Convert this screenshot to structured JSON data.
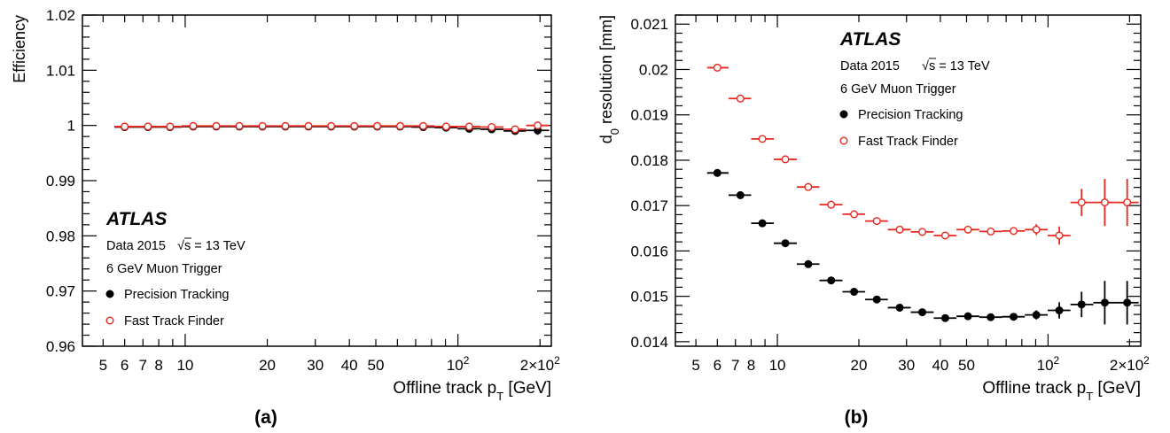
{
  "chart_data": [
    {
      "type": "scatter",
      "panel_label": "(a)",
      "atlas_label": "ATLAS",
      "data_label": "Data 2015",
      "energy_label": "√s = 13 TeV",
      "trigger_label": "6 GeV Muon Trigger",
      "xlabel": "Offline track p_T [GeV]",
      "xlabel_main": "Offline track p",
      "xlabel_sub": "T",
      "xlabel_unit": "[GeV]",
      "ylabel": "Efficiency",
      "x_scale": "log",
      "xlim": [
        4.2,
        220
      ],
      "ylim": [
        0.96,
        1.02
      ],
      "x_tick_labels": [
        {
          "value": 5,
          "label": "5"
        },
        {
          "value": 6,
          "label": "6"
        },
        {
          "value": 7,
          "label": "7"
        },
        {
          "value": 8,
          "label": "8"
        },
        {
          "value": 10,
          "label": "10"
        },
        {
          "value": 20,
          "label": "20"
        },
        {
          "value": 30,
          "label": "30"
        },
        {
          "value": 40,
          "label": "40"
        },
        {
          "value": 50,
          "label": "50"
        },
        {
          "value": 100,
          "label": "10",
          "sup": "2"
        },
        {
          "value": 200,
          "label": "2×10",
          "sup": "2"
        }
      ],
      "y_tick_labels": [
        {
          "value": 0.96,
          "label": "0.96"
        },
        {
          "value": 0.97,
          "label": "0.97"
        },
        {
          "value": 0.98,
          "label": "0.98"
        },
        {
          "value": 0.99,
          "label": "0.99"
        },
        {
          "value": 1.0,
          "label": "1"
        },
        {
          "value": 1.01,
          "label": "1.01"
        },
        {
          "value": 1.02,
          "label": "1.02"
        }
      ],
      "y_minor_step": 0.002,
      "series": [
        {
          "name": "Precision Tracking",
          "marker": "filled-circle",
          "color": "#000000",
          "points": [
            {
              "x": 6,
              "xlo": 5.5,
              "xhi": 6.6,
              "y": 0.9997,
              "err": 0.0002
            },
            {
              "x": 7.3,
              "xlo": 6.6,
              "xhi": 8,
              "y": 0.9997,
              "err": 0.0002
            },
            {
              "x": 8.8,
              "xlo": 8,
              "xhi": 9.7,
              "y": 0.9997,
              "err": 0.0002
            },
            {
              "x": 10.7,
              "xlo": 9.7,
              "xhi": 11.8,
              "y": 0.9998,
              "err": 0.0002
            },
            {
              "x": 13,
              "xlo": 11.8,
              "xhi": 14.3,
              "y": 0.9998,
              "err": 0.0002
            },
            {
              "x": 15.8,
              "xlo": 14.3,
              "xhi": 17.4,
              "y": 0.9998,
              "err": 0.0002
            },
            {
              "x": 19.2,
              "xlo": 17.4,
              "xhi": 21.1,
              "y": 0.9998,
              "err": 0.0002
            },
            {
              "x": 23.3,
              "xlo": 21.1,
              "xhi": 25.6,
              "y": 0.9998,
              "err": 0.0002
            },
            {
              "x": 28.3,
              "xlo": 25.6,
              "xhi": 31.1,
              "y": 0.9998,
              "err": 0.0002
            },
            {
              "x": 34.3,
              "xlo": 31.1,
              "xhi": 37.8,
              "y": 0.9998,
              "err": 0.0002
            },
            {
              "x": 41.7,
              "xlo": 37.8,
              "xhi": 45.9,
              "y": 0.9998,
              "err": 0.0002
            },
            {
              "x": 50.6,
              "xlo": 45.9,
              "xhi": 55.7,
              "y": 0.9998,
              "err": 0.0002
            },
            {
              "x": 61.4,
              "xlo": 55.7,
              "xhi": 67.6,
              "y": 0.9998,
              "err": 0.0002
            },
            {
              "x": 74.6,
              "xlo": 67.6,
              "xhi": 82.1,
              "y": 0.9997,
              "err": 0.0002
            },
            {
              "x": 90.5,
              "xlo": 82.1,
              "xhi": 99.7,
              "y": 0.9996,
              "err": 0.0003
            },
            {
              "x": 110,
              "xlo": 99.7,
              "xhi": 121,
              "y": 0.9994,
              "err": 0.0004
            },
            {
              "x": 133,
              "xlo": 121,
              "xhi": 147,
              "y": 0.9993,
              "err": 0.0005
            },
            {
              "x": 162,
              "xlo": 147,
              "xhi": 178,
              "y": 0.999,
              "err": 0.0006
            },
            {
              "x": 196,
              "xlo": 178,
              "xhi": 216,
              "y": 0.9991,
              "err": 0.0008
            }
          ]
        },
        {
          "name": "Fast Track Finder",
          "marker": "open-circle",
          "color": "#e8281e",
          "points": [
            {
              "x": 6,
              "xlo": 5.5,
              "xhi": 6.6,
              "y": 0.9998,
              "err": 0.0002
            },
            {
              "x": 7.3,
              "xlo": 6.6,
              "xhi": 8,
              "y": 0.9998,
              "err": 0.0002
            },
            {
              "x": 8.8,
              "xlo": 8,
              "xhi": 9.7,
              "y": 0.9998,
              "err": 0.0002
            },
            {
              "x": 10.7,
              "xlo": 9.7,
              "xhi": 11.8,
              "y": 0.9999,
              "err": 0.0002
            },
            {
              "x": 13,
              "xlo": 11.8,
              "xhi": 14.3,
              "y": 0.9999,
              "err": 0.0002
            },
            {
              "x": 15.8,
              "xlo": 14.3,
              "xhi": 17.4,
              "y": 0.9999,
              "err": 0.0002
            },
            {
              "x": 19.2,
              "xlo": 17.4,
              "xhi": 21.1,
              "y": 0.9999,
              "err": 0.0002
            },
            {
              "x": 23.3,
              "xlo": 21.1,
              "xhi": 25.6,
              "y": 0.9999,
              "err": 0.0002
            },
            {
              "x": 28.3,
              "xlo": 25.6,
              "xhi": 31.1,
              "y": 0.9999,
              "err": 0.0002
            },
            {
              "x": 34.3,
              "xlo": 31.1,
              "xhi": 37.8,
              "y": 0.9999,
              "err": 0.0002
            },
            {
              "x": 41.7,
              "xlo": 37.8,
              "xhi": 45.9,
              "y": 0.9999,
              "err": 0.0002
            },
            {
              "x": 50.6,
              "xlo": 45.9,
              "xhi": 55.7,
              "y": 0.9999,
              "err": 0.0002
            },
            {
              "x": 61.4,
              "xlo": 55.7,
              "xhi": 67.6,
              "y": 0.9999,
              "err": 0.0002
            },
            {
              "x": 74.6,
              "xlo": 67.6,
              "xhi": 82.1,
              "y": 0.9999,
              "err": 0.0002
            },
            {
              "x": 90.5,
              "xlo": 82.1,
              "xhi": 99.7,
              "y": 0.9998,
              "err": 0.0002
            },
            {
              "x": 110,
              "xlo": 99.7,
              "xhi": 121,
              "y": 0.9998,
              "err": 0.0003
            },
            {
              "x": 133,
              "xlo": 121,
              "xhi": 147,
              "y": 0.9997,
              "err": 0.0003
            },
            {
              "x": 162,
              "xlo": 147,
              "xhi": 178,
              "y": 0.9993,
              "err": 0.0004
            },
            {
              "x": 196,
              "xlo": 178,
              "xhi": 216,
              "y": 1.0,
              "err": 0.0004
            }
          ]
        }
      ]
    },
    {
      "type": "scatter",
      "panel_label": "(b)",
      "atlas_label": "ATLAS",
      "data_label": "Data 2015",
      "energy_label": "√s = 13 TeV",
      "trigger_label": "6 GeV Muon Trigger",
      "xlabel": "Offline track p_T [GeV]",
      "xlabel_main": "Offline track p",
      "xlabel_sub": "T",
      "xlabel_unit": "[GeV]",
      "ylabel": "d_0 resolution [mm]",
      "ylabel_main": "d",
      "ylabel_sub": "0",
      "ylabel_rest": " resolution [mm]",
      "x_scale": "log",
      "xlim": [
        4.2,
        220
      ],
      "ylim": [
        0.0139,
        0.0212
      ],
      "x_tick_labels": [
        {
          "value": 5,
          "label": "5"
        },
        {
          "value": 6,
          "label": "6"
        },
        {
          "value": 7,
          "label": "7"
        },
        {
          "value": 8,
          "label": "8"
        },
        {
          "value": 10,
          "label": "10"
        },
        {
          "value": 20,
          "label": "20"
        },
        {
          "value": 30,
          "label": "30"
        },
        {
          "value": 40,
          "label": "40"
        },
        {
          "value": 50,
          "label": "50"
        },
        {
          "value": 100,
          "label": "10",
          "sup": "2"
        },
        {
          "value": 200,
          "label": "2×10",
          "sup": "2"
        }
      ],
      "y_tick_labels": [
        {
          "value": 0.014,
          "label": "0.014"
        },
        {
          "value": 0.015,
          "label": "0.015"
        },
        {
          "value": 0.016,
          "label": "0.016"
        },
        {
          "value": 0.017,
          "label": "0.017"
        },
        {
          "value": 0.018,
          "label": "0.018"
        },
        {
          "value": 0.019,
          "label": "0.019"
        },
        {
          "value": 0.02,
          "label": "0.02"
        },
        {
          "value": 0.021,
          "label": "0.021"
        }
      ],
      "y_minor_step": 0.0002,
      "series": [
        {
          "name": "Precision Tracking",
          "marker": "filled-circle",
          "color": "#000000",
          "points": [
            {
              "x": 6,
              "xlo": 5.5,
              "xhi": 6.6,
              "y": 0.01772,
              "err": 3e-05
            },
            {
              "x": 7.3,
              "xlo": 6.6,
              "xhi": 8,
              "y": 0.01723,
              "err": 3e-05
            },
            {
              "x": 8.8,
              "xlo": 8,
              "xhi": 9.7,
              "y": 0.01661,
              "err": 3e-05
            },
            {
              "x": 10.7,
              "xlo": 9.7,
              "xhi": 11.8,
              "y": 0.01617,
              "err": 3e-05
            },
            {
              "x": 13,
              "xlo": 11.8,
              "xhi": 14.3,
              "y": 0.01571,
              "err": 3e-05
            },
            {
              "x": 15.8,
              "xlo": 14.3,
              "xhi": 17.4,
              "y": 0.01535,
              "err": 3e-05
            },
            {
              "x": 19.2,
              "xlo": 17.4,
              "xhi": 21.1,
              "y": 0.0151,
              "err": 3e-05
            },
            {
              "x": 23.3,
              "xlo": 21.1,
              "xhi": 25.6,
              "y": 0.01493,
              "err": 3e-05
            },
            {
              "x": 28.3,
              "xlo": 25.6,
              "xhi": 31.1,
              "y": 0.01475,
              "err": 4e-05
            },
            {
              "x": 34.3,
              "xlo": 31.1,
              "xhi": 37.8,
              "y": 0.01465,
              "err": 4e-05
            },
            {
              "x": 41.7,
              "xlo": 37.8,
              "xhi": 45.9,
              "y": 0.01452,
              "err": 5e-05
            },
            {
              "x": 50.6,
              "xlo": 45.9,
              "xhi": 55.7,
              "y": 0.01456,
              "err": 5e-05
            },
            {
              "x": 61.4,
              "xlo": 55.7,
              "xhi": 67.6,
              "y": 0.01454,
              "err": 5e-05
            },
            {
              "x": 74.6,
              "xlo": 67.6,
              "xhi": 82.1,
              "y": 0.01455,
              "err": 7e-05
            },
            {
              "x": 90.5,
              "xlo": 82.1,
              "xhi": 99.7,
              "y": 0.01459,
              "err": 0.0001
            },
            {
              "x": 110,
              "xlo": 99.7,
              "xhi": 121,
              "y": 0.01469,
              "err": 0.00018
            },
            {
              "x": 133,
              "xlo": 121,
              "xhi": 147,
              "y": 0.01482,
              "err": 0.00028
            },
            {
              "x": 162,
              "xlo": 147,
              "xhi": 178,
              "y": 0.01486,
              "err": 0.00048
            },
            {
              "x": 196,
              "xlo": 178,
              "xhi": 216,
              "y": 0.01486,
              "err": 0.00048
            }
          ]
        },
        {
          "name": "Fast Track Finder",
          "marker": "open-circle",
          "color": "#e8281e",
          "points": [
            {
              "x": 6,
              "xlo": 5.5,
              "xhi": 6.6,
              "y": 0.02004,
              "err": 3e-05
            },
            {
              "x": 7.3,
              "xlo": 6.6,
              "xhi": 8,
              "y": 0.01936,
              "err": 3e-05
            },
            {
              "x": 8.8,
              "xlo": 8,
              "xhi": 9.7,
              "y": 0.01847,
              "err": 3e-05
            },
            {
              "x": 10.7,
              "xlo": 9.7,
              "xhi": 11.8,
              "y": 0.01802,
              "err": 3e-05
            },
            {
              "x": 13,
              "xlo": 11.8,
              "xhi": 14.3,
              "y": 0.01741,
              "err": 3e-05
            },
            {
              "x": 15.8,
              "xlo": 14.3,
              "xhi": 17.4,
              "y": 0.01702,
              "err": 3e-05
            },
            {
              "x": 19.2,
              "xlo": 17.4,
              "xhi": 21.1,
              "y": 0.01681,
              "err": 3e-05
            },
            {
              "x": 23.3,
              "xlo": 21.1,
              "xhi": 25.6,
              "y": 0.01666,
              "err": 3e-05
            },
            {
              "x": 28.3,
              "xlo": 25.6,
              "xhi": 31.1,
              "y": 0.01647,
              "err": 4e-05
            },
            {
              "x": 34.3,
              "xlo": 31.1,
              "xhi": 37.8,
              "y": 0.01642,
              "err": 4e-05
            },
            {
              "x": 41.7,
              "xlo": 37.8,
              "xhi": 45.9,
              "y": 0.01634,
              "err": 5e-05
            },
            {
              "x": 50.6,
              "xlo": 45.9,
              "xhi": 55.7,
              "y": 0.01647,
              "err": 5e-05
            },
            {
              "x": 61.4,
              "xlo": 55.7,
              "xhi": 67.6,
              "y": 0.01643,
              "err": 5e-05
            },
            {
              "x": 74.6,
              "xlo": 67.6,
              "xhi": 82.1,
              "y": 0.01644,
              "err": 7e-05
            },
            {
              "x": 90.5,
              "xlo": 82.1,
              "xhi": 99.7,
              "y": 0.01647,
              "err": 0.00012
            },
            {
              "x": 110,
              "xlo": 99.7,
              "xhi": 121,
              "y": 0.01634,
              "err": 0.0002
            },
            {
              "x": 133,
              "xlo": 121,
              "xhi": 147,
              "y": 0.01707,
              "err": 0.0003
            },
            {
              "x": 162,
              "xlo": 147,
              "xhi": 178,
              "y": 0.01707,
              "err": 0.00052
            },
            {
              "x": 196,
              "xlo": 178,
              "xhi": 216,
              "y": 0.01707,
              "err": 0.00052
            }
          ]
        }
      ]
    }
  ]
}
